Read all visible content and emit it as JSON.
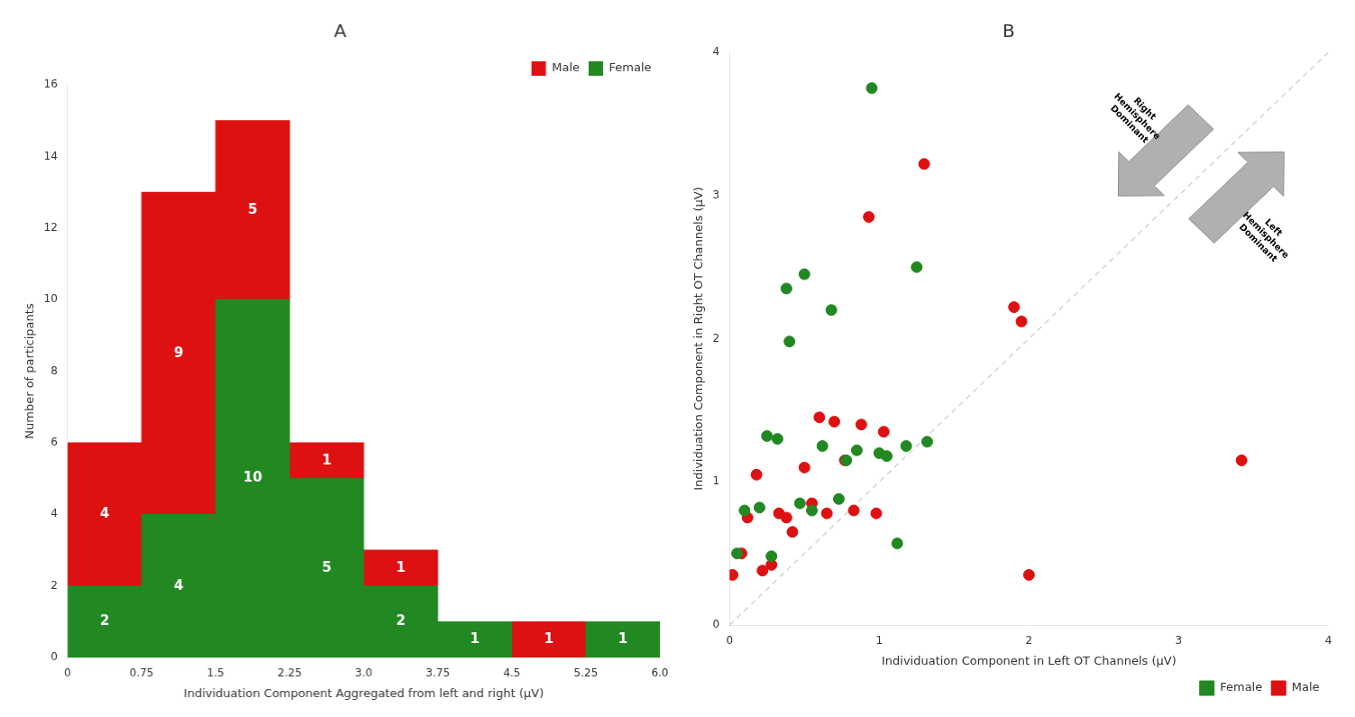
{
  "chart_data": [
    {
      "type": "bar",
      "title": "A",
      "bins": [
        0,
        0.75,
        1.5,
        2.25,
        3.0,
        3.75,
        4.5,
        5.25,
        6.0
      ],
      "series": [
        {
          "name": "Female",
          "color": "#228822",
          "values": [
            2,
            4,
            10,
            5,
            2,
            1,
            0,
            1
          ]
        },
        {
          "name": "Male",
          "color": "#dd1111",
          "values": [
            4,
            9,
            5,
            1,
            1,
            0,
            1,
            0
          ]
        }
      ],
      "stacked": true,
      "data_labels": true,
      "xlabel": "Individuation Component Aggregated from left and right (μV)",
      "ylabel": "Number of participants",
      "xlim": [
        0,
        6.0
      ],
      "xticks": [
        0,
        0.75,
        1.5,
        2.25,
        {
          "value": 3.0,
          "label": "3.0"
        },
        3.75,
        4.5,
        5.25,
        {
          "value": 6.0,
          "label": "6.0"
        }
      ],
      "ylim": [
        0,
        16
      ],
      "yticks": [
        0,
        2,
        4,
        6,
        8,
        10,
        12,
        14,
        16
      ],
      "grid": false,
      "legend": "upper right"
    },
    {
      "type": "scatter",
      "title": "B",
      "series": [
        {
          "name": "Female",
          "color": "#228822",
          "marker": "circle",
          "x": [
            0.05,
            0.1,
            0.2,
            0.25,
            0.28,
            0.32,
            0.38,
            0.4,
            0.47,
            0.5,
            0.55,
            0.62,
            0.68,
            0.73,
            0.78,
            0.85,
            0.95,
            1.0,
            1.05,
            1.12,
            1.18,
            1.25,
            1.32
          ],
          "y": [
            0.5,
            0.8,
            0.82,
            1.32,
            0.48,
            1.3,
            2.35,
            1.98,
            0.85,
            2.45,
            0.8,
            1.25,
            2.2,
            0.88,
            1.15,
            1.22,
            3.75,
            1.2,
            1.18,
            0.57,
            1.25,
            2.5,
            1.28
          ]
        },
        {
          "name": "Male",
          "color": "#dd1111",
          "marker": "circle",
          "x": [
            0.02,
            0.08,
            0.12,
            0.18,
            0.22,
            0.28,
            0.33,
            0.38,
            0.42,
            0.5,
            0.55,
            0.6,
            0.65,
            0.7,
            0.77,
            0.83,
            0.88,
            0.93,
            0.98,
            1.03,
            1.3,
            1.9,
            1.95,
            2.0,
            3.42
          ],
          "y": [
            0.35,
            0.5,
            0.75,
            1.05,
            0.38,
            0.42,
            0.78,
            0.75,
            0.65,
            1.1,
            0.85,
            1.45,
            0.78,
            1.42,
            1.15,
            0.8,
            1.4,
            2.85,
            0.78,
            1.35,
            3.22,
            2.22,
            2.12,
            0.35,
            1.15
          ]
        }
      ],
      "lines": [
        {
          "x": [
            0,
            4
          ],
          "y": [
            0,
            4
          ],
          "color": "#d3d3d3",
          "line_style": "dashed"
        }
      ],
      "arrows": [
        {
          "x": 2.95,
          "y": 3.35,
          "direction": "lower left"
        },
        {
          "x": 3.35,
          "y": 2.95,
          "direction": "upper right"
        }
      ],
      "annotations": [
        {
          "text": "Right\nHemisphere\nDominant",
          "x": 2.72,
          "y": 3.55
        },
        {
          "text": "Left\nHemisphere\nDominant",
          "x": 3.58,
          "y": 2.72
        }
      ],
      "xlabel": "Individuation Component in Left OT Channels (μV)",
      "ylabel": "Individuation Component in Right OT Channels (μV)",
      "xlim": [
        0,
        4
      ],
      "xticks": [
        0,
        1,
        2,
        3,
        4
      ],
      "ylim": [
        0,
        4
      ],
      "yticks": [
        0,
        1,
        2,
        3,
        4
      ],
      "grid": false,
      "legend": "lower right"
    }
  ]
}
